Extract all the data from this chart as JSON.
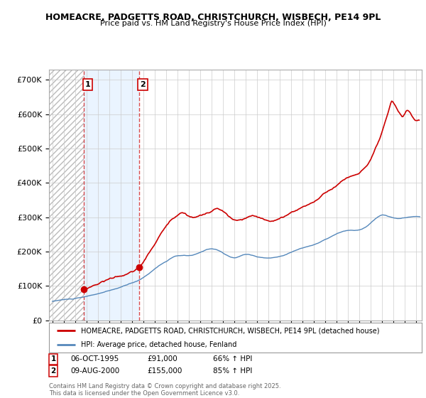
{
  "title1": "HOMEACRE, PADGETTS ROAD, CHRISTCHURCH, WISBECH, PE14 9PL",
  "title2": "Price paid vs. HM Land Registry's House Price Index (HPI)",
  "sale1_date": 1995.77,
  "sale1_price": 91000,
  "sale2_date": 2000.61,
  "sale2_price": 155000,
  "legend1": "HOMEACRE, PADGETTS ROAD, CHRISTCHURCH, WISBECH, PE14 9PL (detached house)",
  "legend2": "HPI: Average price, detached house, Fenland",
  "note1_date": "06-OCT-1995",
  "note1_price": "£91,000",
  "note1_hpi": "66% ↑ HPI",
  "note2_date": "09-AUG-2000",
  "note2_price": "£155,000",
  "note2_hpi": "85% ↑ HPI",
  "footnote": "Contains HM Land Registry data © Crown copyright and database right 2025.\nThis data is licensed under the Open Government Licence v3.0.",
  "red_color": "#cc0000",
  "blue_color": "#5588bb",
  "blue_fill": "#ddeeff",
  "hatch_color": "#bbbbbb",
  "background_color": "#ffffff",
  "grid_color": "#cccccc",
  "ylim": [
    0,
    730000
  ],
  "xlim_start": 1992.7,
  "xlim_end": 2025.5
}
